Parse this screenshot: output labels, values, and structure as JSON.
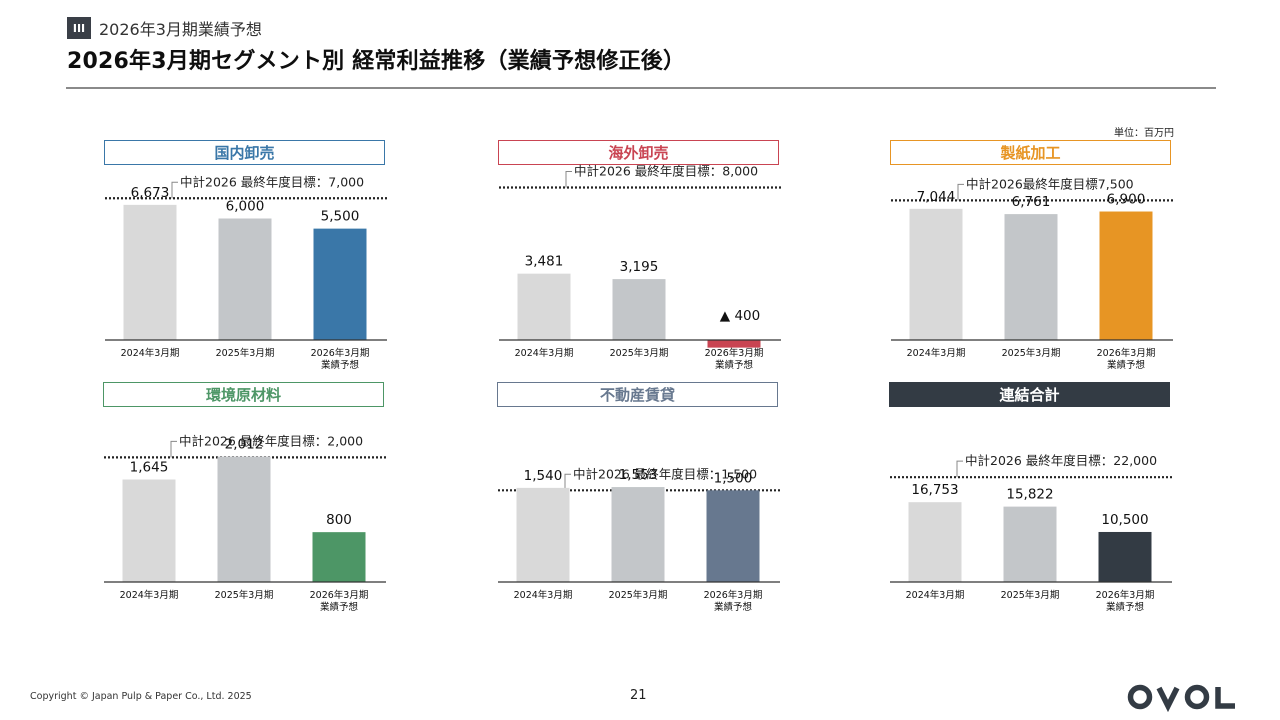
{
  "header": {
    "section_icon": "III",
    "section_label": "2026年3月期業績予想",
    "title": "2026年3月期セグメント別 経常利益推移（業績予想修正後）"
  },
  "unit_label": "単位：百万円",
  "footer": {
    "copyright": "Copyright © Japan Pulp & Paper Co., Ltd. 2025",
    "page_number": "21",
    "logo_text": "OVOL",
    "logo_icon": "ovol-logo-icon"
  },
  "colors": {
    "bar_2024": "#d9d9d9",
    "bar_2025": "#c3c6c9",
    "domestic": "#3a77a8",
    "overseas": "#c94452",
    "paper": "#e79524",
    "environment": "#4d9666",
    "realestate": "#67788f",
    "consolidated": "#333b44",
    "target_line": "#222222"
  },
  "chart_data": [
    {
      "type": "bar",
      "title": "国内卸売",
      "title_style": "outline",
      "accent": "#3a77a8",
      "categories": [
        "2024年3月期",
        "2025年3月期",
        "2026年3月期\n業績予想"
      ],
      "values": [
        6673,
        6000,
        5500
      ],
      "value_labels": [
        "6,673",
        "6,000",
        "5,500"
      ],
      "target": 7000,
      "target_label": "中計2026 最終年度目標：7,000",
      "ylim": [
        0,
        8000
      ]
    },
    {
      "type": "bar",
      "title": "海外卸売",
      "title_style": "outline",
      "accent": "#c94452",
      "categories": [
        "2024年3月期",
        "2025年3月期",
        "2026年3月期\n業績予想"
      ],
      "values": [
        3481,
        3195,
        -400
      ],
      "value_labels": [
        "3,481",
        "3,195",
        "▲ 400"
      ],
      "target": 8000,
      "target_label": "中計2026 最終年度目標：8,000",
      "ylim": [
        -500,
        8500
      ]
    },
    {
      "type": "bar",
      "title": "製紙加工",
      "title_style": "outline",
      "accent": "#e79524",
      "categories": [
        "2024年3月期",
        "2025年3月期",
        "2026年3月期\n業績予想"
      ],
      "values": [
        7044,
        6761,
        6900
      ],
      "value_labels": [
        "7,044",
        "6,761",
        "6,900"
      ],
      "target": 7500,
      "target_label": "中計2026最終年度目標7,500",
      "ylim": [
        0,
        8700
      ]
    },
    {
      "type": "bar",
      "title": "環境原材料",
      "title_style": "outline",
      "accent": "#4d9666",
      "categories": [
        "2024年3月期",
        "2025年3月期",
        "2026年3月期\n業績予想"
      ],
      "values": [
        1645,
        2012,
        800
      ],
      "value_labels": [
        "1,645",
        "2,012",
        "800"
      ],
      "target": 2000,
      "target_label": "中計2026 最終年度目標：2,000",
      "ylim": [
        0,
        2600
      ]
    },
    {
      "type": "bar",
      "title": "不動産賃貸",
      "title_style": "outline",
      "accent": "#67788f",
      "categories": [
        "2024年3月期",
        "2025年3月期",
        "2026年3月期\n業績予想"
      ],
      "values": [
        1540,
        1553,
        1500
      ],
      "value_labels": [
        "1,540",
        "1,553",
        "1,500"
      ],
      "target": 1500,
      "target_label": "中計2026 最終年度目標：1,500",
      "ylim": [
        0,
        2650
      ]
    },
    {
      "type": "bar",
      "title": "連結合計",
      "title_style": "filled",
      "accent": "#333b44",
      "categories": [
        "2024年3月期",
        "2025年3月期",
        "2026年3月期\n業績予想"
      ],
      "values": [
        16753,
        15822,
        10500
      ],
      "value_labels": [
        "16,753",
        "15,822",
        "10,500"
      ],
      "target": 22000,
      "target_label": "中計2026 最終年度目標：22,000",
      "ylim": [
        0,
        34000
      ]
    }
  ]
}
